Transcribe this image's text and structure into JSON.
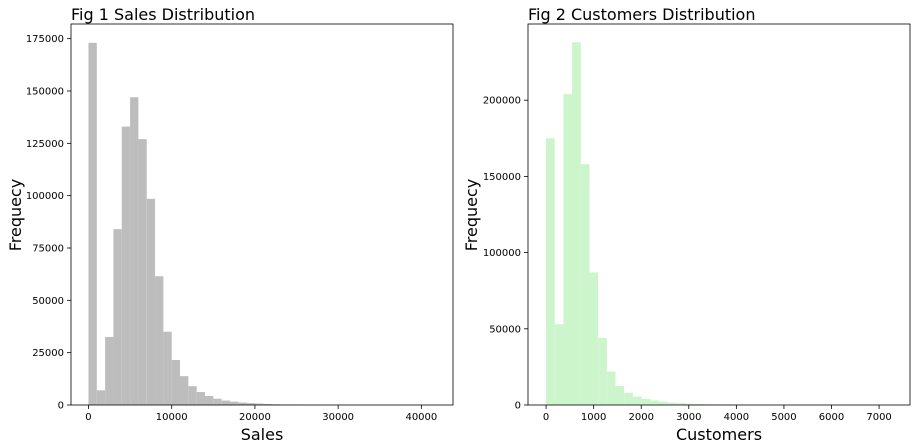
{
  "chart_data": [
    {
      "type": "bar",
      "title": "Fig 1 Sales Distribution",
      "xlabel": "Sales",
      "ylabel": "Frequecy",
      "color": "#bdbdbd",
      "xlim": [
        -2100,
        43800
      ],
      "ylim": [
        0,
        182000
      ],
      "xticks": [
        0,
        10000,
        20000,
        30000,
        40000
      ],
      "yticks": [
        0,
        25000,
        50000,
        75000,
        100000,
        125000,
        150000,
        175000
      ],
      "grid": false,
      "bin_width": 1000,
      "bins_start": [
        0,
        1000,
        2000,
        3000,
        4000,
        5000,
        6000,
        7000,
        8000,
        9000,
        10000,
        11000,
        12000,
        13000,
        14000,
        15000,
        16000,
        17000,
        18000,
        19000,
        20000,
        21000,
        22000,
        23000,
        24000,
        25000,
        26000,
        27000,
        28000,
        29000,
        30000,
        31000,
        32000,
        33000,
        34000,
        35000,
        36000,
        37000,
        38000,
        39000,
        40000,
        41000
      ],
      "values": [
        173000,
        7000,
        32500,
        84000,
        133000,
        147000,
        127000,
        98500,
        61500,
        35000,
        21500,
        13800,
        9000,
        6200,
        4300,
        3000,
        2100,
        1600,
        1200,
        900,
        700,
        500,
        350,
        250,
        180,
        120,
        80,
        60,
        40,
        30,
        20,
        15,
        10,
        8,
        6,
        4,
        3,
        2,
        2,
        1,
        1,
        1
      ]
    },
    {
      "type": "bar",
      "title": "Fig 2 Customers Distribution",
      "xlabel": "Customers",
      "ylabel": "Frequecy",
      "color": "#ccf5cc",
      "xlim": [
        -380,
        7650
      ],
      "ylim": [
        0,
        250000
      ],
      "xticks": [
        0,
        1000,
        2000,
        3000,
        4000,
        5000,
        6000,
        7000
      ],
      "yticks": [
        0,
        50000,
        100000,
        150000,
        200000
      ],
      "grid": false,
      "bin_width": 182.5,
      "bins_start": [
        0,
        182.5,
        365,
        547.5,
        730,
        912.5,
        1095,
        1277.5,
        1460,
        1642.5,
        1825,
        2007.5,
        2190,
        2372.5,
        2555,
        2737.5,
        2920,
        3102.5,
        3285,
        3467.5,
        3650,
        3832.5,
        4015,
        4197.5,
        4380,
        4562.5,
        4745,
        4927.5,
        5110,
        5292.5,
        5475,
        5657.5,
        5840,
        6022.5,
        6205,
        6387.5,
        6570,
        6752.5,
        6935,
        7117.5
      ],
      "values": [
        175000,
        53000,
        204000,
        238000,
        158000,
        87000,
        44000,
        22000,
        12500,
        8000,
        5500,
        4000,
        3000,
        2200,
        1600,
        1200,
        900,
        650,
        500,
        380,
        280,
        200,
        150,
        110,
        80,
        60,
        45,
        30,
        20,
        15,
        10,
        8,
        6,
        5,
        4,
        3,
        2,
        2,
        1,
        1
      ]
    }
  ]
}
